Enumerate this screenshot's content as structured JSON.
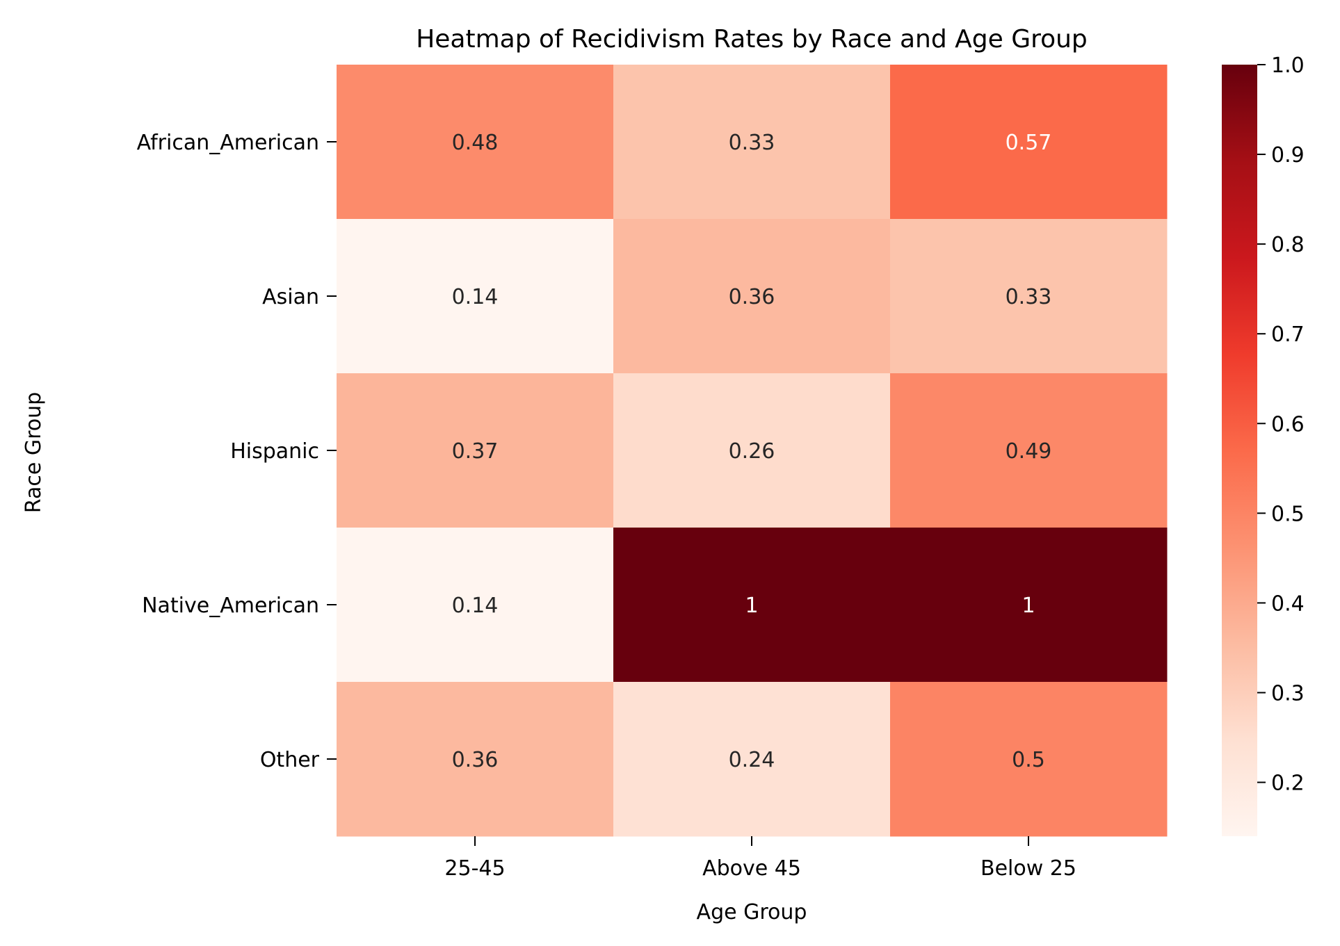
{
  "chart_data": {
    "type": "heatmap",
    "title": "Heatmap of Recidivism Rates by Race and Age Group",
    "xlabel": "Age Group",
    "ylabel": "Race Group",
    "x_categories": [
      "25-45",
      "Above 45",
      "Below 25"
    ],
    "y_categories": [
      "African_American",
      "Asian",
      "Hispanic",
      "Native_American",
      "Other"
    ],
    "values": [
      [
        0.48,
        0.33,
        0.57
      ],
      [
        0.14,
        0.36,
        0.33
      ],
      [
        0.37,
        0.26,
        0.49
      ],
      [
        0.14,
        1.0,
        1.0
      ],
      [
        0.36,
        0.24,
        0.5
      ]
    ],
    "cell_labels": [
      [
        "0.48",
        "0.33",
        "0.57"
      ],
      [
        "0.14",
        "0.36",
        "0.33"
      ],
      [
        "0.37",
        "0.26",
        "0.49"
      ],
      [
        "0.14",
        "1",
        "1"
      ],
      [
        "0.36",
        "0.24",
        "0.5"
      ]
    ],
    "colormap": "Reds",
    "colorbar": {
      "vmin": 0.14,
      "vmax": 1.0,
      "ticks": [
        "0.2",
        "0.3",
        "0.4",
        "0.5",
        "0.6",
        "0.7",
        "0.8",
        "0.9",
        "1.0"
      ],
      "placement": "right"
    },
    "colors": {
      "text_dark": "#262626",
      "text_light": "#ffffff",
      "axis": "#000000"
    }
  }
}
